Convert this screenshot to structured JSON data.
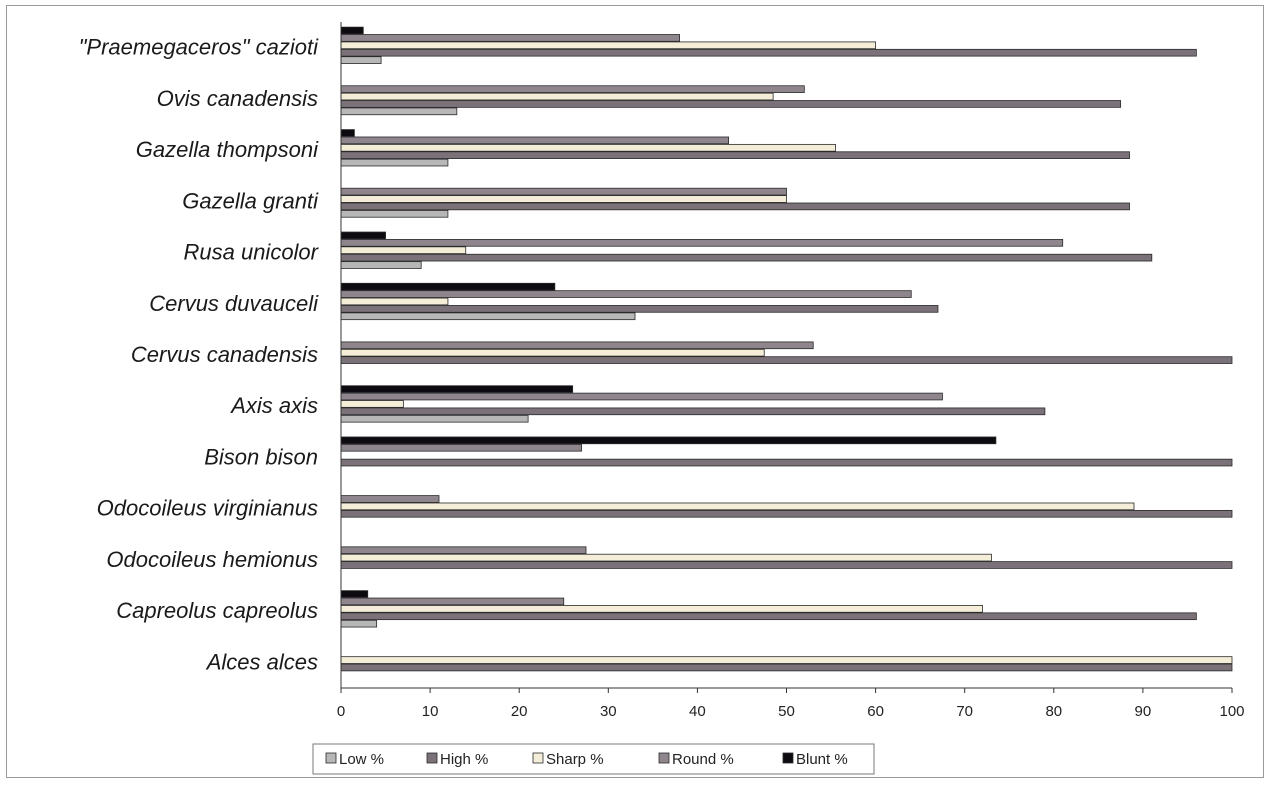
{
  "chart_data": {
    "type": "bar",
    "orientation": "horizontal",
    "categories": [
      "\"Praemegaceros\" cazioti",
      "Ovis canadensis",
      "Gazella thompsoni",
      "Gazella granti",
      "Rusa unicolor",
      "Cervus duvauceli",
      "Cervus canadensis",
      "Axis axis",
      "Bison bison",
      "Odocoileus virginianus",
      "Odocoileus hemionus",
      "Capreolus capreolus",
      "Alces alces"
    ],
    "series": [
      {
        "name": "Low %",
        "color": "#b7b7b7",
        "values": [
          4.5,
          13,
          12,
          12,
          9,
          33,
          0,
          21,
          0,
          0,
          0,
          4,
          0
        ]
      },
      {
        "name": "High %",
        "color": "#7a7278",
        "values": [
          96,
          87.5,
          88.5,
          88.5,
          91,
          67,
          100,
          79,
          100,
          100,
          100,
          96,
          100
        ]
      },
      {
        "name": "Sharp %",
        "color": "#f4eed8",
        "values": [
          60,
          48.5,
          55.5,
          50,
          14,
          12,
          47.5,
          7,
          0,
          89,
          73,
          72,
          100
        ]
      },
      {
        "name": "Round %",
        "color": "#8f868d",
        "values": [
          38,
          52,
          43.5,
          50,
          81,
          64,
          53,
          67.5,
          27,
          11,
          27.5,
          25,
          0
        ]
      },
      {
        "name": "Blunt %",
        "color": "#0d0b10",
        "values": [
          2.5,
          0,
          1.5,
          0,
          5,
          24,
          0,
          26,
          73.5,
          0,
          0,
          3,
          0
        ]
      }
    ],
    "xlim": [
      0,
      100
    ],
    "xticks": [
      "0",
      "10",
      "20",
      "30",
      "40",
      "50",
      "60",
      "70",
      "80",
      "90",
      "100"
    ],
    "grid": false,
    "legend_position": "bottom",
    "title": "",
    "xlabel": "",
    "ylabel": ""
  }
}
